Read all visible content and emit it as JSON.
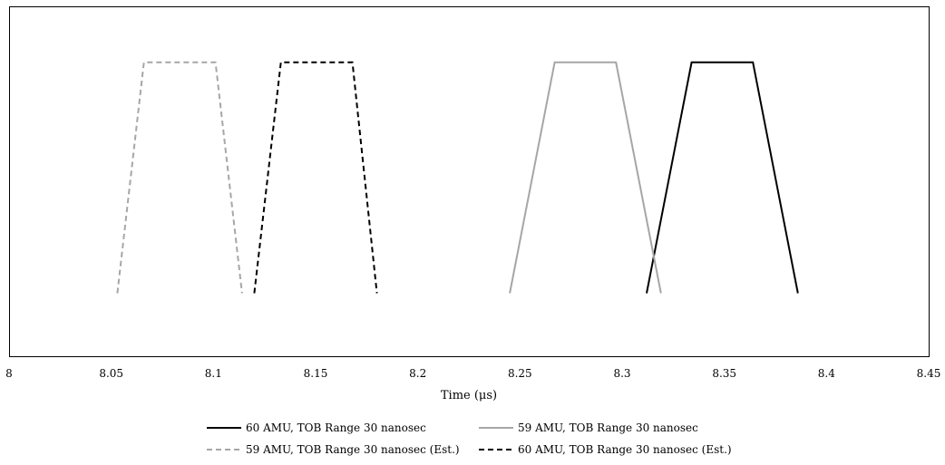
{
  "chart_data": {
    "type": "line",
    "title": "",
    "xlabel": "Time (μs)",
    "ylabel": "",
    "xlim": [
      8,
      8.45
    ],
    "ylim": [
      0,
      1
    ],
    "x_ticks": [
      "8",
      "8.05",
      "8.1",
      "8.15",
      "8.2",
      "8.25",
      "8.3",
      "8.35",
      "8.4",
      "8.45"
    ],
    "y_ticks": [],
    "grid": false,
    "legend_position": "bottom",
    "series": [
      {
        "name": "60 AMU, TOB Range 30 nanosec",
        "color": "#000000",
        "dash": "solid",
        "x": [
          8.312,
          8.334,
          8.364,
          8.386
        ],
        "y": [
          0.18,
          0.84,
          0.84,
          0.18
        ]
      },
      {
        "name": "59 AMU, TOB Range 30 nanosec",
        "color": "#a6a6a6",
        "dash": "solid",
        "x": [
          8.245,
          8.267,
          8.297,
          8.319
        ],
        "y": [
          0.18,
          0.84,
          0.84,
          0.18
        ]
      },
      {
        "name": "59 AMU, TOB Range 30 nanosec (Est.)",
        "color": "#a6a6a6",
        "dash": "dashed",
        "x": [
          8.053,
          8.066,
          8.101,
          8.114
        ],
        "y": [
          0.18,
          0.84,
          0.84,
          0.18
        ]
      },
      {
        "name": "60 AMU, TOB Range 30 nanosec (Est.)",
        "color": "#000000",
        "dash": "dashed",
        "x": [
          8.12,
          8.133,
          8.168,
          8.18
        ],
        "y": [
          0.18,
          0.84,
          0.84,
          0.18
        ]
      }
    ]
  }
}
